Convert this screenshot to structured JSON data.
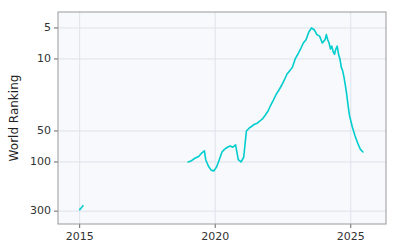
{
  "chart_data": {
    "type": "line",
    "y_label": "World Ranking",
    "log": "y",
    "grid": true,
    "xlim": [
      2014.2,
      2026.3
    ],
    "xticks": [
      2015,
      2020,
      2025
    ],
    "ylim": [
      400,
      3.5
    ],
    "yticks": [
      5,
      10,
      50,
      100,
      300
    ],
    "x": [
      2015.0,
      2015.08,
      2015.12,
      null,
      2019.0,
      2019.1,
      2019.25,
      2019.4,
      2019.5,
      2019.6,
      2019.65,
      2019.75,
      2019.85,
      2019.95,
      2020.05,
      2020.15,
      2020.25,
      2020.35,
      2020.45,
      2020.55,
      2020.65,
      2020.75,
      2020.85,
      2020.95,
      2021.05,
      2021.15,
      2021.25,
      2021.35,
      2021.45,
      2021.55,
      2021.65,
      2021.75,
      2021.85,
      2021.95,
      2022.05,
      2022.15,
      2022.25,
      2022.35,
      2022.45,
      2022.55,
      2022.65,
      2022.75,
      2022.85,
      2022.95,
      2023.05,
      2023.15,
      2023.25,
      2023.35,
      2023.45,
      2023.55,
      2023.65,
      2023.75,
      2023.85,
      2023.95,
      2024.05,
      2024.1,
      2024.15,
      2024.2,
      2024.25,
      2024.3,
      2024.35,
      2024.4,
      2024.45,
      2024.5,
      2024.55,
      2024.6,
      2024.65,
      2024.7,
      2024.75,
      2024.8,
      2024.85,
      2024.9,
      2024.95,
      2025.05,
      2025.15,
      2025.25,
      2025.35,
      2025.45
    ],
    "series": [
      {
        "color": "#00cdcd",
        "values": [
          290,
          275,
          265,
          null,
          100,
          98,
          92,
          88,
          82,
          78,
          95,
          110,
          120,
          122,
          112,
          95,
          80,
          75,
          72,
          70,
          72,
          68,
          95,
          100,
          90,
          50,
          47,
          45,
          43,
          42,
          40,
          38,
          35,
          32,
          28,
          25,
          22,
          20,
          18,
          16,
          14,
          13,
          12,
          10,
          9,
          8,
          7,
          6.5,
          5.5,
          5.0,
          5.2,
          5.8,
          6.0,
          7.0,
          6.5,
          5.8,
          6.5,
          7.0,
          8.0,
          7.5,
          8.5,
          9.0,
          8.0,
          7.5,
          9.0,
          10.0,
          12.0,
          13.0,
          15.0,
          18.0,
          22.0,
          28.0,
          35.0,
          45.0,
          55.0,
          65.0,
          75.0,
          80.0
        ]
      }
    ]
  }
}
